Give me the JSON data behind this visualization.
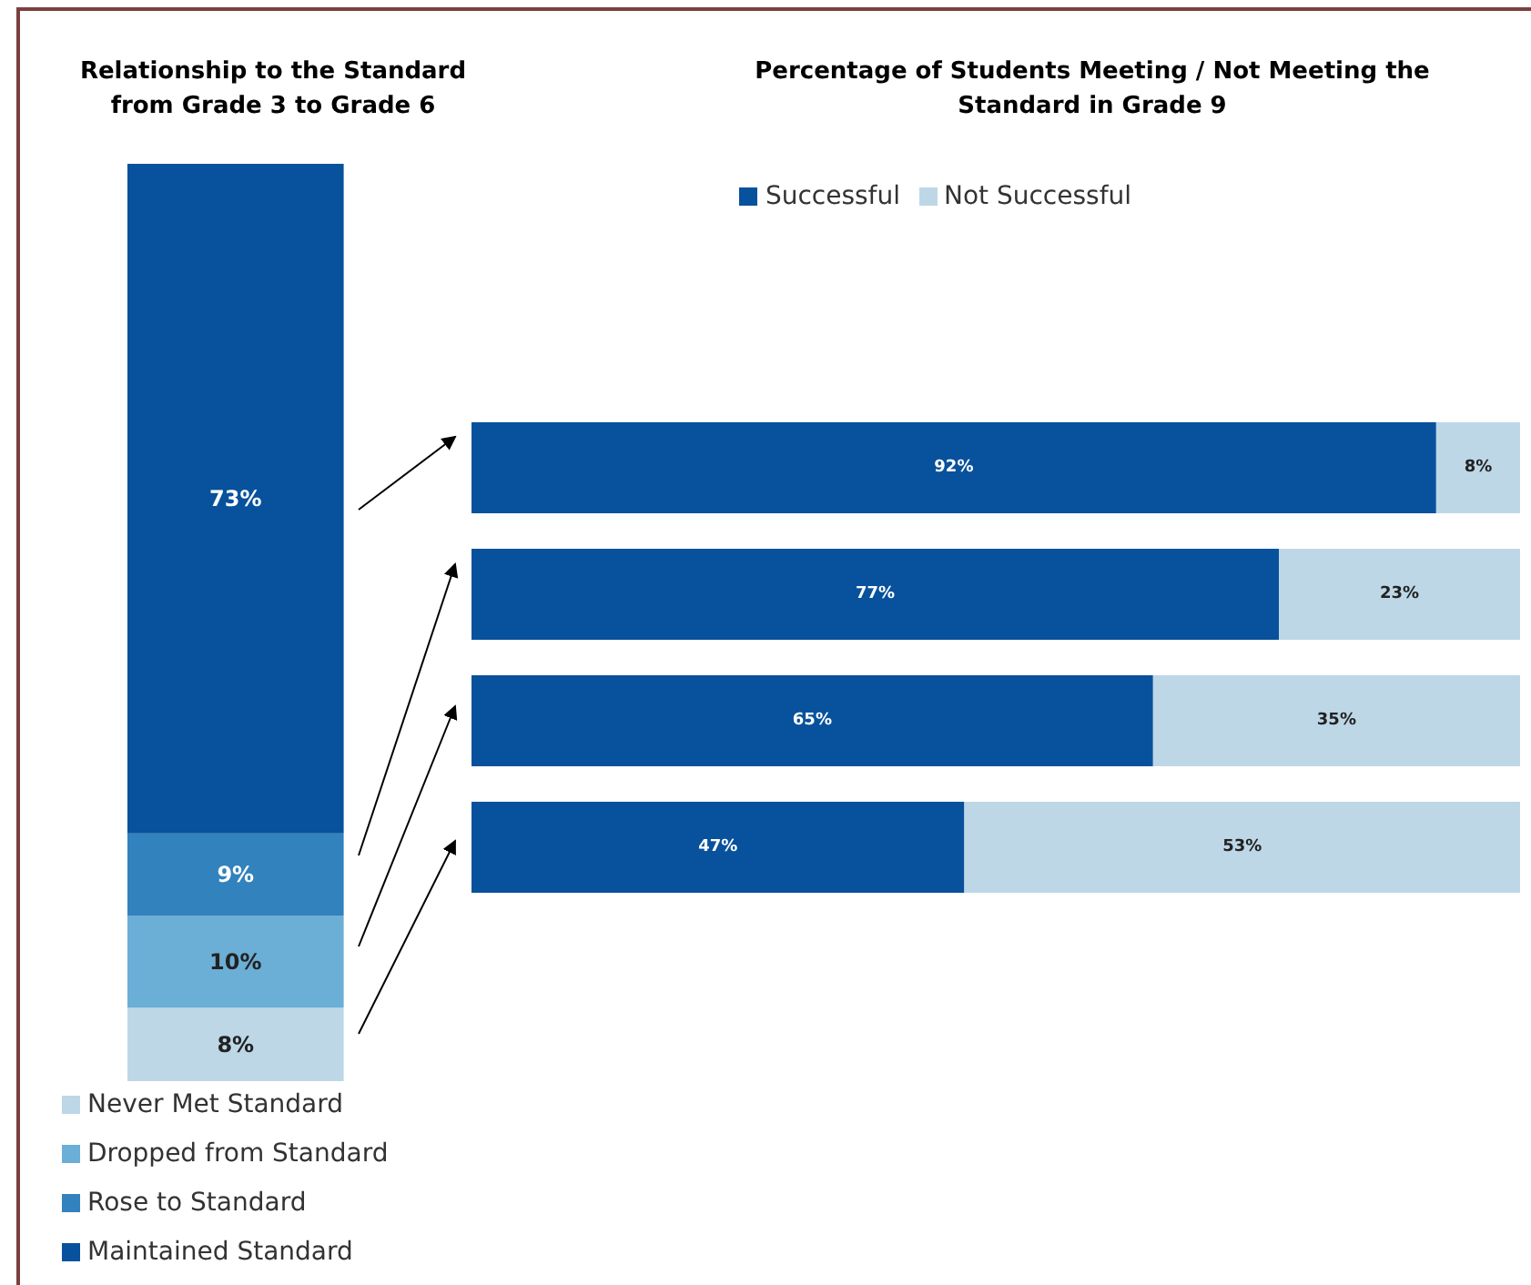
{
  "chart_data": [
    {
      "type": "bar",
      "stacked": true,
      "title": "Relationship to the Standard\nfrom Grade 3 to Grade 6",
      "categories": [
        null
      ],
      "legend": "bottom left",
      "tick_labels": false,
      "series": [
        {
          "name": "Never Met Standard",
          "color": "#bdd7e7",
          "values": [
            8
          ],
          "value_labels": [
            "8%"
          ]
        },
        {
          "name": "Dropped from Standard",
          "color": "#6baed6",
          "values": [
            10
          ],
          "value_labels": [
            "10%"
          ]
        },
        {
          "name": "Rose to Standard",
          "color": "#3182bd",
          "values": [
            9
          ],
          "value_labels": [
            "9%"
          ]
        },
        {
          "name": "Maintained Standard",
          "color": "#08519c",
          "values": [
            73
          ],
          "value_labels": [
            "73%"
          ]
        }
      ]
    },
    {
      "type": "bar",
      "stacked": true,
      "orientation": "horizontal",
      "title": "Percentage of Students Meeting / Not Meeting the\nStandard in Grade 9",
      "categories": [
        null,
        null,
        null,
        null
      ],
      "legend": "top",
      "tick_labels": false,
      "series": [
        {
          "name": "Successful",
          "color": "#08519c",
          "values": [
            92,
            77,
            65,
            47
          ],
          "value_labels": [
            "92%",
            "77%",
            "65%",
            "47%"
          ]
        },
        {
          "name": "Not Successful",
          "color": "#bdd7e7",
          "values": [
            8,
            23,
            35,
            53
          ],
          "value_labels": [
            "8%",
            "23%",
            "35%",
            "53%"
          ]
        }
      ]
    }
  ]
}
